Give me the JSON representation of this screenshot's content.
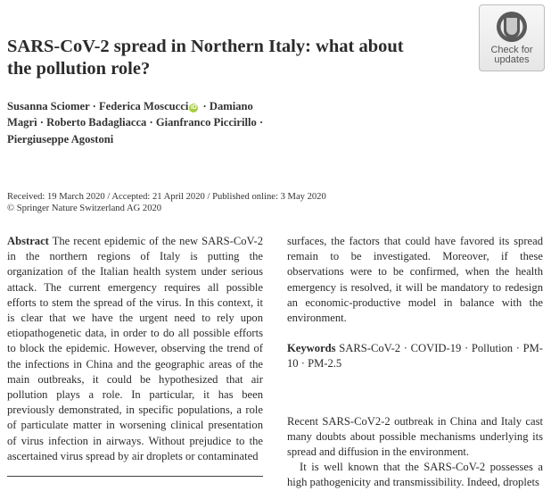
{
  "title": "SARS-CoV-2 spread in Northern Italy: what about the pollution role?",
  "authors": {
    "line1": "Susanna Sciomer · Federica Moscucci",
    "orcid_glyph": "iD",
    "line1b": " · Damiano",
    "line2": "Magrì · Roberto Badagliacca · Gianfranco Piccirillo ·",
    "line3": "Piergiuseppe Agostoni"
  },
  "dates": {
    "received": "Received: 19 March 2020 / Accepted: 21 April 2020 / Published online: 3 May 2020",
    "copyright": "© Springer Nature Switzerland AG 2020"
  },
  "badge": {
    "line1": "Check for",
    "line2": "updates"
  },
  "abstract": {
    "label": "Abstract",
    "text": "The recent epidemic of the new SARS-CoV-2 in the northern regions of Italy is putting the organization of the Italian health system under serious attack. The current emergency requires all possible efforts to stem the spread of the virus. In this context, it is clear that we have the urgent need to rely upon etiopathogenetic data, in order to do all possible efforts to block the epidemic. However, observing the trend of the infections in China and the geographic areas of the main outbreaks, it could be hypothesized that air pollution plays a role. In particular, it has been previously demonstrated, in specific populations, a role of particulate matter in worsening clinical presentation of virus infection in airways. Without prejudice to the ascertained virus spread by air droplets or contaminated",
    "continuation": "surfaces, the factors that could have favored its spread remain to be investigated. Moreover, if these observations were to be confirmed, when the health emergency is resolved, it will be mandatory to redesign an economic-productive model in balance with the environment."
  },
  "keywords": {
    "label": "Keywords",
    "text": "SARS-CoV-2 · COVID-19 · Pollution · PM-10 · PM-2.5"
  },
  "intro": {
    "para1": "Recent SARS-CoV2-2 outbreak in China and Italy cast many doubts about possible mechanisms underlying its spread and diffusion in the environment.",
    "para2": "It is well known that the SARS-CoV-2 possesses a high pathogenicity and transmissibility. Indeed, droplets"
  }
}
